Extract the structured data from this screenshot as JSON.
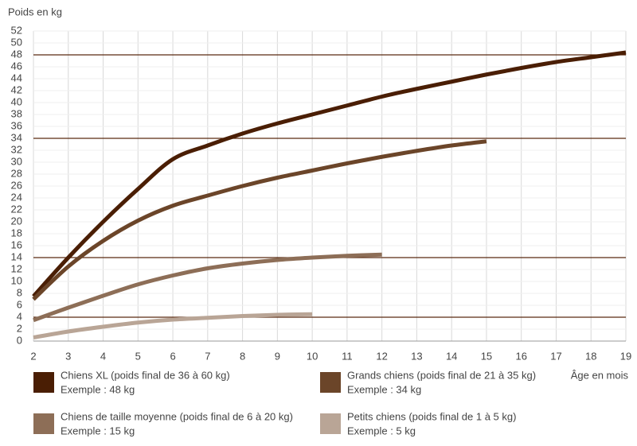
{
  "chart_data": {
    "type": "line",
    "y_label": "Poids en kg",
    "x_label": "Âge en mois",
    "xlim": [
      2,
      19
    ],
    "xticks": [
      2,
      3,
      4,
      5,
      6,
      7,
      8,
      9,
      10,
      11,
      12,
      13,
      14,
      15,
      16,
      17,
      18,
      19
    ],
    "ylim": [
      0,
      52
    ],
    "yticks": [
      0,
      2,
      4,
      6,
      8,
      10,
      12,
      14,
      16,
      18,
      20,
      22,
      24,
      26,
      28,
      30,
      32,
      34,
      36,
      38,
      40,
      42,
      44,
      46,
      48,
      50,
      52
    ],
    "grid": true,
    "reference_lines": [
      48,
      34,
      14,
      4
    ],
    "reference_color": "#5a2a10",
    "series": [
      {
        "name": "Chiens XL (poids final de 36 à 60 kg)",
        "example": "Exemple : 48 kg",
        "color": "#4a1e04",
        "x": [
          2,
          3,
          4,
          5,
          6,
          7,
          8,
          9,
          10,
          11,
          12,
          13,
          14,
          15,
          16,
          17,
          18,
          19
        ],
        "values": [
          7.5,
          14,
          20,
          25.5,
          30.5,
          32.8,
          34.8,
          36.5,
          38,
          39.5,
          41,
          42.3,
          43.5,
          44.7,
          45.8,
          46.8,
          47.6,
          48.4
        ]
      },
      {
        "name": "Grands chiens (poids final de 21 à 35 kg)",
        "example": "Exemple : 34 kg",
        "color": "#6b4529",
        "x": [
          2,
          3,
          4,
          5,
          6,
          7,
          8,
          9,
          10,
          11,
          12,
          13,
          14,
          15
        ],
        "values": [
          7,
          12.5,
          16.8,
          20.2,
          22.7,
          24.4,
          26,
          27.4,
          28.6,
          29.8,
          30.9,
          31.9,
          32.8,
          33.5
        ]
      },
      {
        "name": "Chiens de taille moyenne (poids final de 6 à 20 kg)",
        "example": "Exemple : 15 kg",
        "color": "#8d6e57",
        "x": [
          2,
          3,
          4,
          5,
          6,
          7,
          8,
          9,
          10,
          11,
          12
        ],
        "values": [
          3.5,
          5.6,
          7.6,
          9.5,
          11,
          12.2,
          13,
          13.6,
          14,
          14.3,
          14.5
        ]
      },
      {
        "name": "Petits chiens (poids final de 1 à 5 kg)",
        "example": "Exemple : 5 kg",
        "color": "#b9a596",
        "x": [
          2,
          3,
          4,
          5,
          6,
          7,
          8,
          9,
          10
        ],
        "values": [
          0.6,
          1.6,
          2.4,
          3.1,
          3.6,
          3.9,
          4.2,
          4.4,
          4.5
        ]
      }
    ]
  }
}
